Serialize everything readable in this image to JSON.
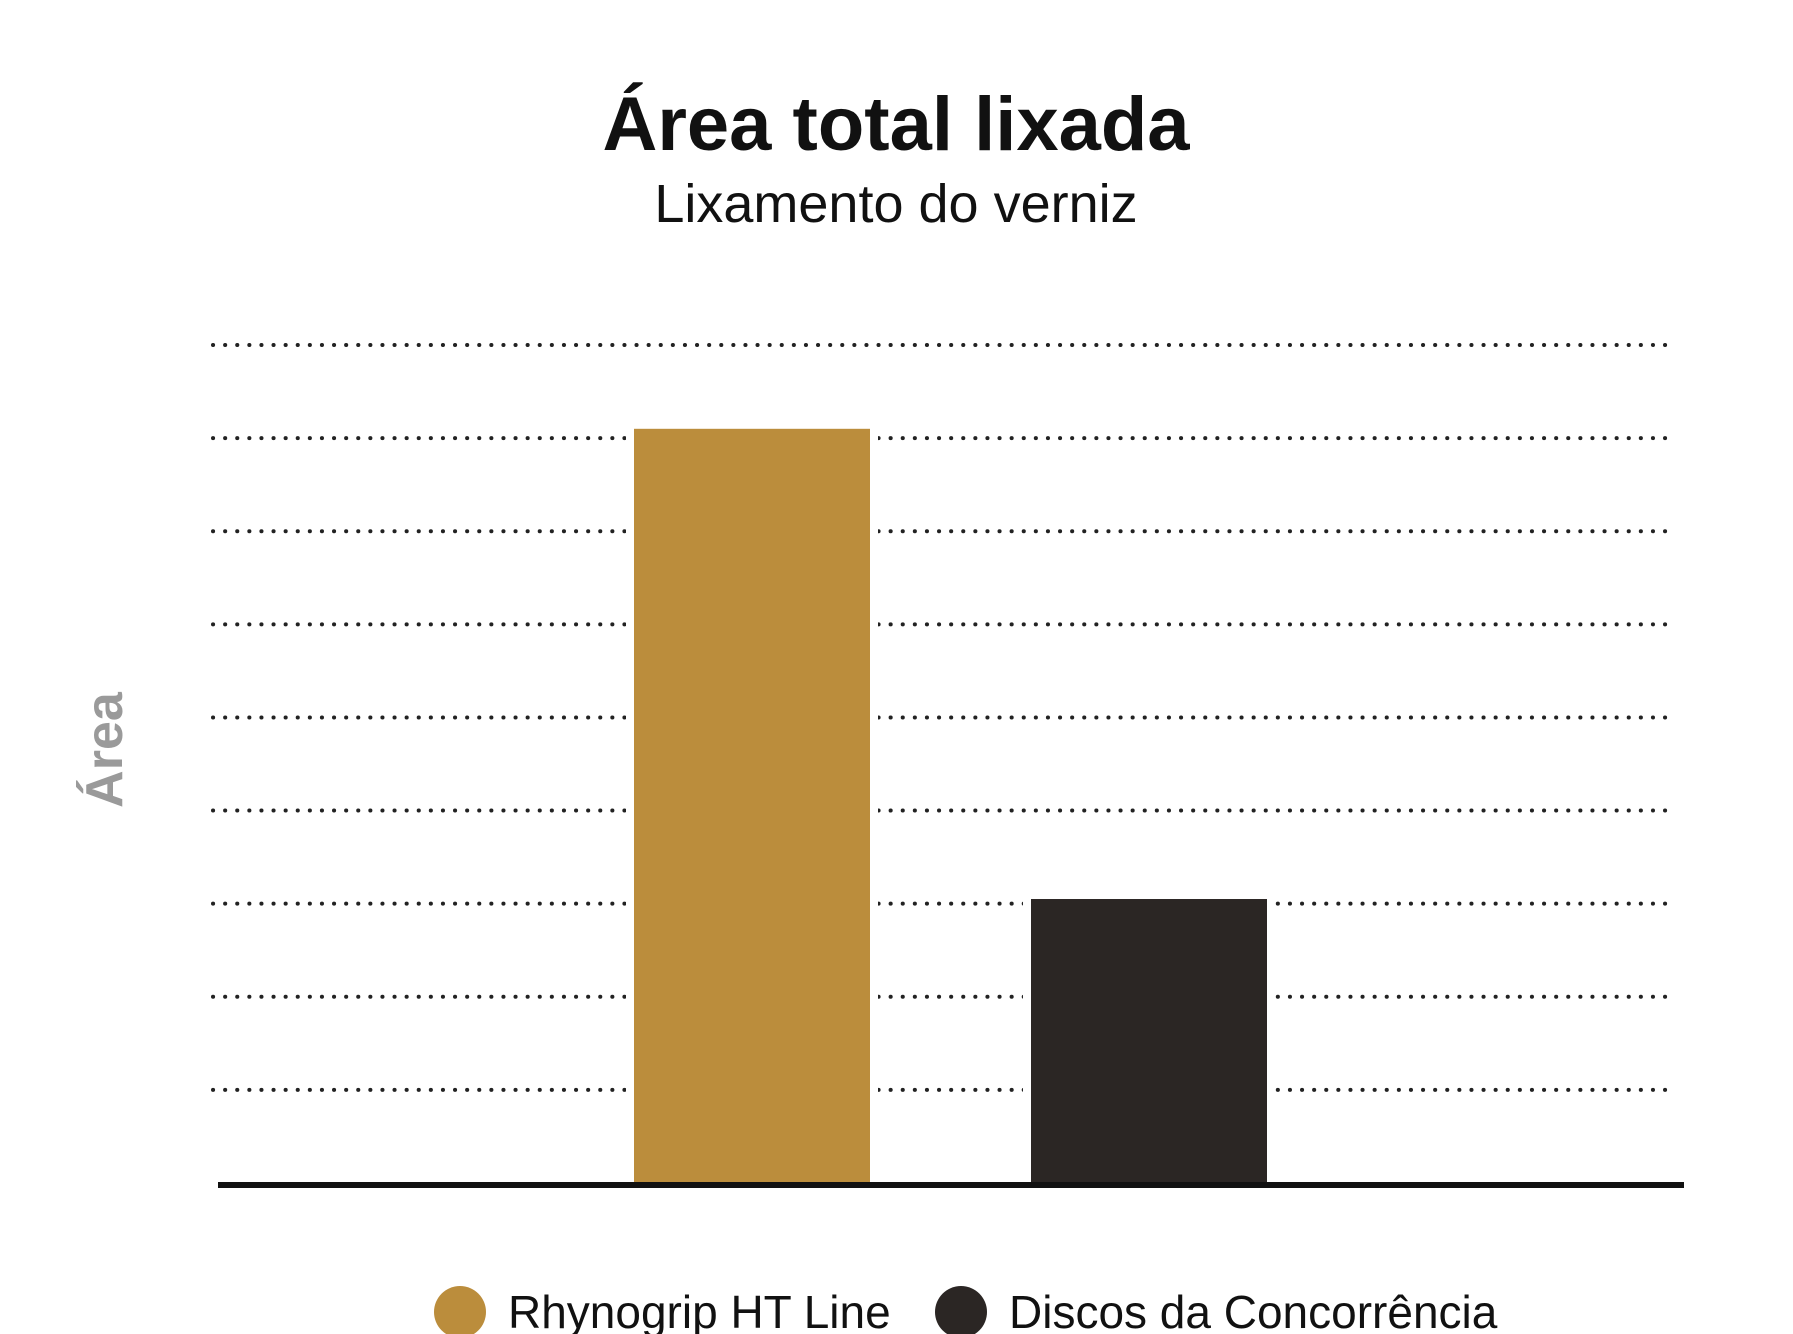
{
  "chart_data": {
    "type": "bar",
    "title": "Área total lixada",
    "subtitle": "Lixamento do verniz",
    "xlabel": "",
    "ylabel": "Área",
    "categories": [
      "Rhynogrip HT Line",
      "Discos da Concorrência"
    ],
    "values": [
      8.1,
      3.05
    ],
    "ylim": [
      0,
      9
    ],
    "grid": true,
    "grid_style": "dotted",
    "legend_position": "bottom",
    "colors": {
      "Rhynogrip HT Line": "#bb8d3c",
      "Discos da Concorrência": "#2b2624",
      "axis": "#111111",
      "grid": "#222222"
    }
  }
}
